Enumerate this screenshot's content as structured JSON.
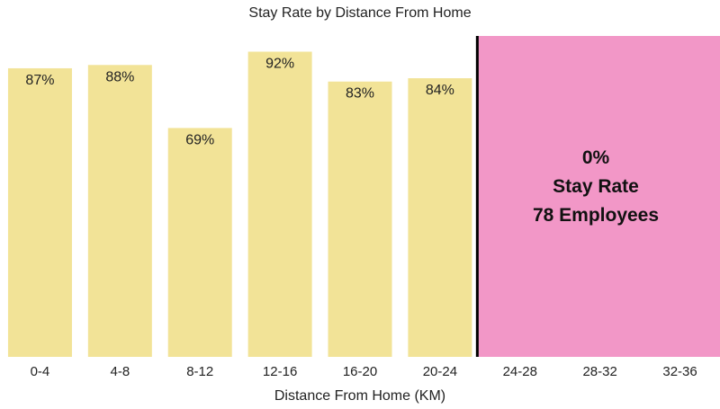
{
  "chart_data": {
    "type": "bar",
    "title": "Stay Rate by Distance From Home",
    "xlabel": "Distance From Home (KM)",
    "ylabel": "",
    "categories": [
      "0-4",
      "4-8",
      "8-12",
      "12-16",
      "16-20",
      "20-24",
      "24-28",
      "28-32",
      "32-36"
    ],
    "values": [
      87,
      88,
      69,
      92,
      83,
      84,
      null,
      null,
      null
    ],
    "value_labels": [
      "87%",
      "88%",
      "69%",
      "92%",
      "83%",
      "84%",
      "",
      "",
      ""
    ],
    "ylim": [
      0,
      100
    ],
    "grid": false,
    "bar_color": "#f2e397",
    "highlight": {
      "categories": [
        "24-28",
        "28-32",
        "32-36"
      ],
      "color": "#f297c7",
      "divider_color": "#000000",
      "lines": [
        "0%",
        "Stay Rate",
        "78 Employees"
      ]
    }
  }
}
